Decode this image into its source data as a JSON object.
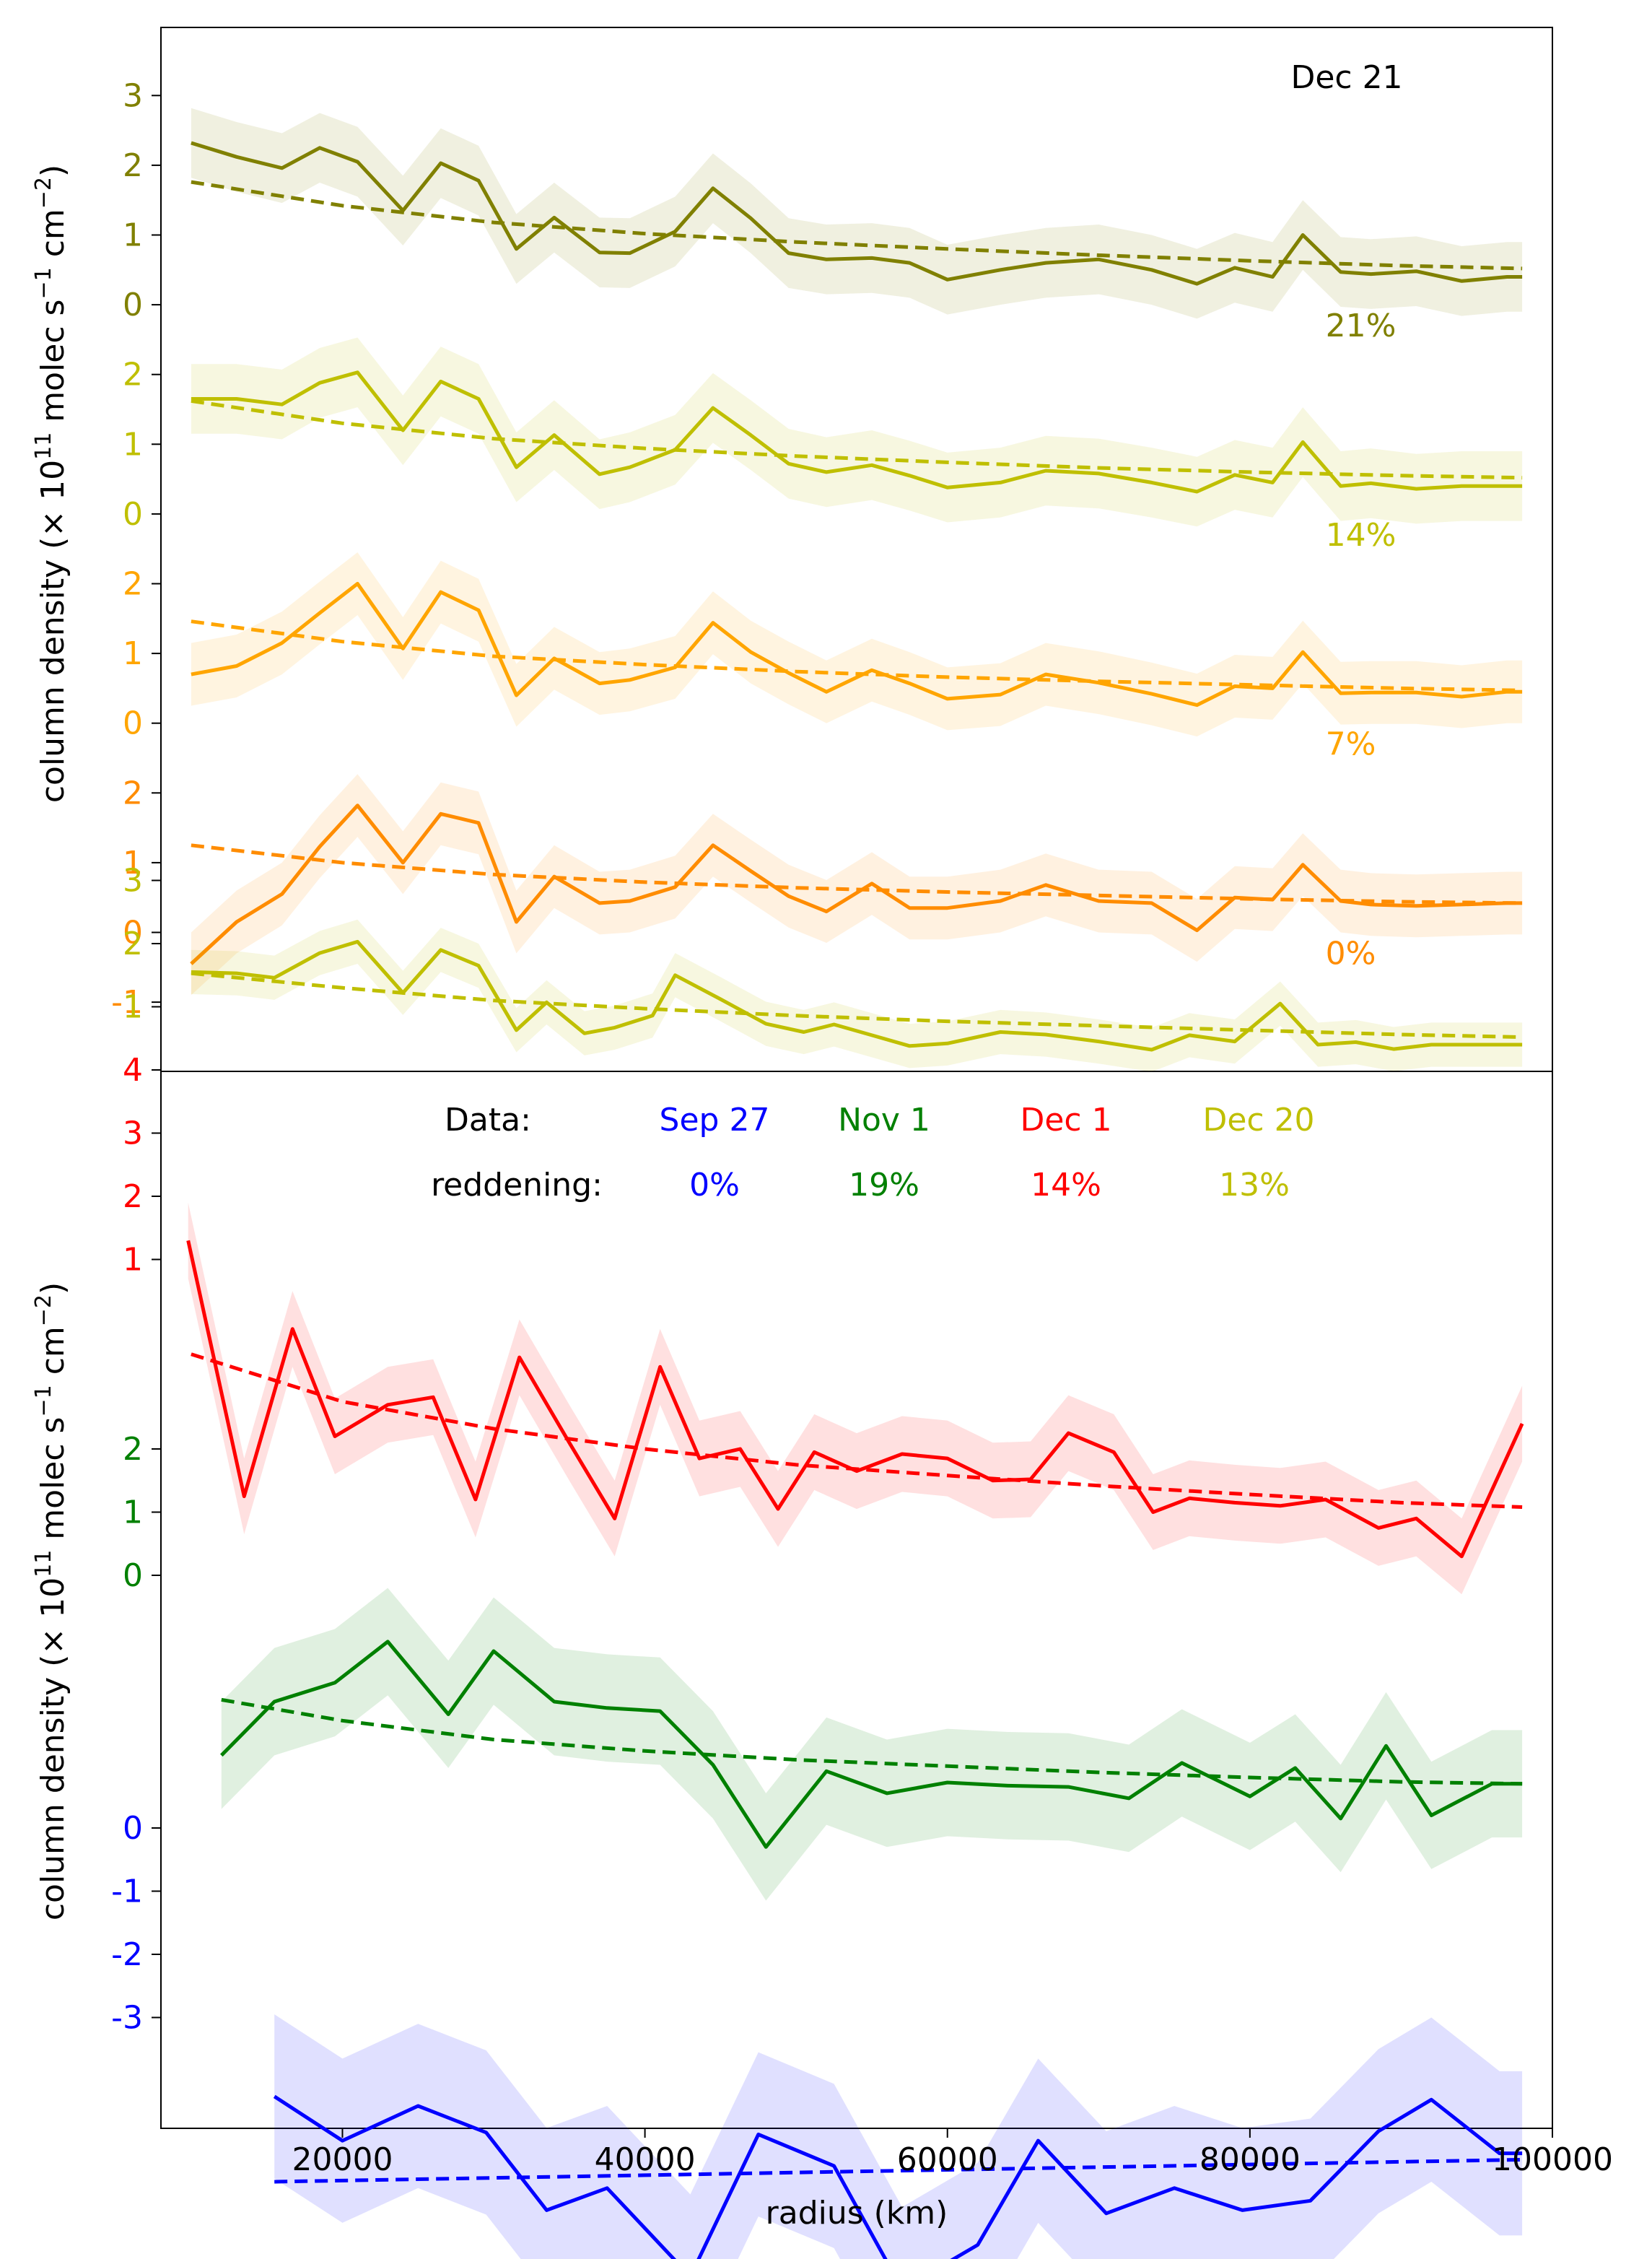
{
  "chart_data": [
    {
      "type": "line",
      "panel": "top",
      "title": "Dec 21",
      "ylabel": "column density (× 10^11 molec s^-1 cm^-2)",
      "ylabel_parts": {
        "pre": "column density (",
        "times": "×",
        "base": " 10",
        "exp1": "11",
        "mid": " molec s",
        "exp2": "−1",
        "mid2": " cm",
        "exp3": "−2",
        "post": ")"
      },
      "xlim": [
        8000,
        100000
      ],
      "grid": false,
      "series": [
        {
          "label": "21%",
          "color": "#808000",
          "offset": 9,
          "yticks": [
            "0",
            "1",
            "2",
            "3"
          ],
          "x": [
            10000,
            13000,
            16000,
            18500,
            21000,
            24000,
            26500,
            29000,
            31500,
            34000,
            37000,
            39000,
            42000,
            44500,
            47000,
            49500,
            52000,
            55000,
            57500,
            60000,
            63500,
            66500,
            70000,
            73500,
            76500,
            79000,
            81500,
            83500,
            86000,
            88000,
            91000,
            94000,
            97000,
            98000
          ],
          "y": [
            2.32,
            2.12,
            1.96,
            2.25,
            2.05,
            1.35,
            2.03,
            1.78,
            0.8,
            1.25,
            0.75,
            0.74,
            1.05,
            1.67,
            1.24,
            0.74,
            0.65,
            0.67,
            0.6,
            0.36,
            0.5,
            0.6,
            0.65,
            0.5,
            0.3,
            0.53,
            0.4,
            1.0,
            0.47,
            0.44,
            0.48,
            0.34,
            0.4,
            0.4
          ],
          "err": 0.5,
          "fit_x": [
            10000,
            20000,
            30000,
            40000,
            50000,
            60000,
            70000,
            80000,
            90000,
            98000
          ],
          "fit_y": [
            1.76,
            1.42,
            1.18,
            1.02,
            0.9,
            0.8,
            0.71,
            0.63,
            0.56,
            0.52
          ]
        },
        {
          "label": "14%",
          "color": "#bfbf00",
          "offset": 6,
          "yticks": [
            "0",
            "1",
            "2"
          ],
          "x": [
            10000,
            13000,
            16000,
            18500,
            21000,
            24000,
            26500,
            29000,
            31500,
            34000,
            37000,
            39000,
            42000,
            44500,
            47000,
            49500,
            52000,
            55000,
            57500,
            60000,
            63500,
            66500,
            70000,
            73500,
            76500,
            79000,
            81500,
            83500,
            86000,
            88000,
            91000,
            94000,
            97000,
            98000
          ],
          "y": [
            1.65,
            1.65,
            1.57,
            1.88,
            2.03,
            1.2,
            1.9,
            1.65,
            0.67,
            1.13,
            0.57,
            0.67,
            0.92,
            1.52,
            1.13,
            0.72,
            0.6,
            0.7,
            0.55,
            0.38,
            0.45,
            0.62,
            0.58,
            0.45,
            0.32,
            0.56,
            0.45,
            1.03,
            0.4,
            0.44,
            0.36,
            0.4,
            0.4,
            0.4
          ],
          "err": 0.5,
          "fit_x": [
            10000,
            20000,
            30000,
            40000,
            50000,
            60000,
            70000,
            80000,
            90000,
            98000
          ],
          "fit_y": [
            1.62,
            1.3,
            1.08,
            0.94,
            0.83,
            0.74,
            0.66,
            0.6,
            0.55,
            0.52
          ]
        },
        {
          "label": "7%",
          "color": "#ffa500",
          "offset": 3,
          "yticks": [
            "0",
            "1",
            "2"
          ],
          "x": [
            10000,
            13000,
            16000,
            18500,
            21000,
            24000,
            26500,
            29000,
            31500,
            34000,
            37000,
            39000,
            42000,
            44500,
            47000,
            49500,
            52000,
            55000,
            57500,
            60000,
            63500,
            66500,
            70000,
            73500,
            76500,
            79000,
            81500,
            83500,
            86000,
            88000,
            91000,
            94000,
            97000,
            98000
          ],
          "y": [
            0.7,
            0.82,
            1.15,
            1.58,
            2.0,
            1.07,
            1.88,
            1.62,
            0.4,
            0.93,
            0.57,
            0.62,
            0.8,
            1.44,
            1.02,
            0.72,
            0.45,
            0.76,
            0.57,
            0.35,
            0.41,
            0.7,
            0.58,
            0.42,
            0.26,
            0.53,
            0.5,
            1.02,
            0.43,
            0.44,
            0.44,
            0.38,
            0.45,
            0.45
          ],
          "err": 0.45,
          "fit_x": [
            10000,
            20000,
            30000,
            40000,
            50000,
            60000,
            70000,
            80000,
            90000,
            98000
          ],
          "fit_y": [
            1.46,
            1.17,
            0.96,
            0.84,
            0.74,
            0.66,
            0.6,
            0.55,
            0.5,
            0.47
          ]
        },
        {
          "label": "0%",
          "color": "#ff8c00",
          "offset": 0,
          "yticks": [
            "-1",
            "0",
            "1",
            "2"
          ],
          "x": [
            10000,
            13000,
            16000,
            18500,
            21000,
            24000,
            26500,
            29000,
            31500,
            34000,
            37000,
            39000,
            42000,
            44500,
            47000,
            49500,
            52000,
            55000,
            57500,
            60000,
            63500,
            66500,
            70000,
            73500,
            76500,
            79000,
            81500,
            83500,
            86000,
            88000,
            91000,
            94000,
            97000,
            98000
          ],
          "y": [
            -0.45,
            0.15,
            0.55,
            1.23,
            1.82,
            1.0,
            1.7,
            1.57,
            0.15,
            0.8,
            0.42,
            0.45,
            0.65,
            1.25,
            0.88,
            0.52,
            0.3,
            0.7,
            0.35,
            0.35,
            0.45,
            0.68,
            0.45,
            0.42,
            0.03,
            0.5,
            0.47,
            0.97,
            0.45,
            0.4,
            0.38,
            0.4,
            0.42,
            0.42
          ],
          "err": 0.45,
          "fit_x": [
            10000,
            20000,
            30000,
            40000,
            50000,
            60000,
            70000,
            80000,
            90000,
            98000
          ],
          "fit_y": [
            1.25,
            1.0,
            0.83,
            0.72,
            0.64,
            0.58,
            0.53,
            0.48,
            0.44,
            0.42
          ]
        }
      ]
    },
    {
      "type": "line",
      "panel": "bottom",
      "xlabel": "radius (km)",
      "ylabel": "column density (× 10^11 molec s^-1 cm^-2)",
      "xlim": [
        8000,
        100000
      ],
      "xticks": [
        "20000",
        "40000",
        "60000",
        "80000",
        "100000"
      ],
      "grid": false,
      "legend": {
        "row1_label": "Data:",
        "row2_label": "reddening:",
        "entries": [
          {
            "date": "Sep 27",
            "reddening": "0%",
            "color": "#0000ff"
          },
          {
            "date": "Nov 1",
            "reddening": "19%",
            "color": "#008000"
          },
          {
            "date": "Dec 1",
            "reddening": "14%",
            "color": "#ff0000"
          },
          {
            "date": "Dec 20",
            "reddening": "13%",
            "color": "#bfbf00"
          }
        ]
      },
      "series": [
        {
          "name": "Dec 20",
          "color": "#bfbf00",
          "offset": 12,
          "yticks": [
            "1",
            "2",
            "3"
          ],
          "x": [
            10000,
            13000,
            15500,
            18500,
            21000,
            24000,
            26500,
            29000,
            31500,
            33500,
            36000,
            38000,
            40500,
            42000,
            45000,
            48000,
            50500,
            52500,
            55000,
            57500,
            60000,
            63500,
            66500,
            70000,
            73500,
            76000,
            79000,
            82000,
            84500,
            87000,
            89500,
            92000,
            94500,
            98000
          ],
          "y": [
            1.55,
            1.53,
            1.46,
            1.85,
            2.03,
            1.22,
            1.9,
            1.65,
            0.63,
            1.07,
            0.58,
            0.67,
            0.86,
            1.5,
            1.12,
            0.73,
            0.6,
            0.72,
            0.55,
            0.38,
            0.42,
            0.6,
            0.56,
            0.45,
            0.32,
            0.55,
            0.45,
            1.05,
            0.4,
            0.44,
            0.33,
            0.4,
            0.4,
            0.4
          ],
          "err": 0.35,
          "fit_x": [
            10000,
            20000,
            30000,
            40000,
            50000,
            60000,
            70000,
            80000,
            90000,
            98000
          ],
          "fit_y": [
            1.53,
            1.3,
            1.1,
            0.97,
            0.86,
            0.77,
            0.7,
            0.63,
            0.56,
            0.52
          ]
        },
        {
          "name": "Dec 1",
          "color": "#ff0000",
          "offset": 8,
          "yticks": [
            "1",
            "2",
            "3",
            "4"
          ],
          "x": [
            9800,
            13500,
            16700,
            19500,
            23000,
            26000,
            28800,
            31700,
            35000,
            38000,
            41000,
            43600,
            46300,
            48800,
            51200,
            54000,
            57000,
            60000,
            63000,
            65500,
            68000,
            71000,
            73600,
            76000,
            79000,
            82000,
            85000,
            88500,
            91000,
            94000,
            98000
          ],
          "y": [
            1.3,
            -2.75,
            -0.1,
            -1.8,
            -1.3,
            -1.18,
            -2.8,
            -0.55,
            -1.9,
            -3.1,
            -0.7,
            -2.15,
            -2.0,
            -2.95,
            -2.05,
            -2.35,
            -2.08,
            -2.15,
            -2.5,
            -2.48,
            -1.75,
            -2.05,
            -3.0,
            -2.78,
            -2.85,
            -2.9,
            -2.8,
            -3.25,
            -3.1,
            -3.7,
            -1.6
          ],
          "err_band": 0.6,
          "fit_x": [
            10000,
            20000,
            30000,
            40000,
            50000,
            60000,
            70000,
            80000,
            90000,
            98000
          ],
          "fit_y": [
            -0.5,
            -1.25,
            -1.68,
            -2.0,
            -2.25,
            -2.42,
            -2.58,
            -2.72,
            -2.85,
            -2.92
          ]
        },
        {
          "name": "Nov 1",
          "color": "#008000",
          "offset": 4,
          "yticks": [
            "0",
            "1",
            "2"
          ],
          "x": [
            12000,
            15500,
            19500,
            23000,
            27000,
            30000,
            34000,
            37500,
            41000,
            44500,
            48000,
            52000,
            56000,
            60000,
            64000,
            68000,
            72000,
            75500,
            80000,
            83000,
            86000,
            89000,
            92000,
            96000,
            98000
          ],
          "y": [
            -2.85,
            -2.0,
            -1.7,
            -1.05,
            -2.2,
            -1.2,
            -2.0,
            -2.1,
            -2.15,
            -3.0,
            -4.3,
            -3.1,
            -3.45,
            -3.28,
            -3.33,
            -3.35,
            -3.53,
            -2.97,
            -3.5,
            -3.05,
            -3.85,
            -2.7,
            -3.8,
            -3.3,
            -3.3
          ],
          "err_band": 0.85,
          "fit_x": [
            12000,
            20000,
            30000,
            40000,
            50000,
            60000,
            70000,
            80000,
            90000,
            98000
          ],
          "fit_y": [
            -1.97,
            -2.3,
            -2.6,
            -2.78,
            -2.92,
            -3.02,
            -3.12,
            -3.2,
            -3.27,
            -3.3
          ]
        },
        {
          "name": "Sep 27",
          "color": "#0000ff",
          "offset": 0,
          "yticks": [
            "-3",
            "-2",
            "-1",
            "0"
          ],
          "x": [
            15500,
            20000,
            25000,
            29500,
            33500,
            37500,
            43000,
            47500,
            52500,
            57000,
            62000,
            66000,
            70500,
            75000,
            79500,
            84000,
            88500,
            92000,
            96500,
            98000
          ],
          "y": [
            -4.25,
            -4.95,
            -4.4,
            -4.82,
            -6.05,
            -5.7,
            -7.1,
            -4.85,
            -5.35,
            -7.3,
            -6.6,
            -4.95,
            -6.1,
            -5.7,
            -6.05,
            -5.9,
            -4.8,
            -4.3,
            -5.15,
            -5.15
          ],
          "err_band": 1.3,
          "fit_x": [
            15500,
            98000
          ],
          "fit_y": [
            -5.6,
            -5.25
          ]
        }
      ]
    }
  ]
}
